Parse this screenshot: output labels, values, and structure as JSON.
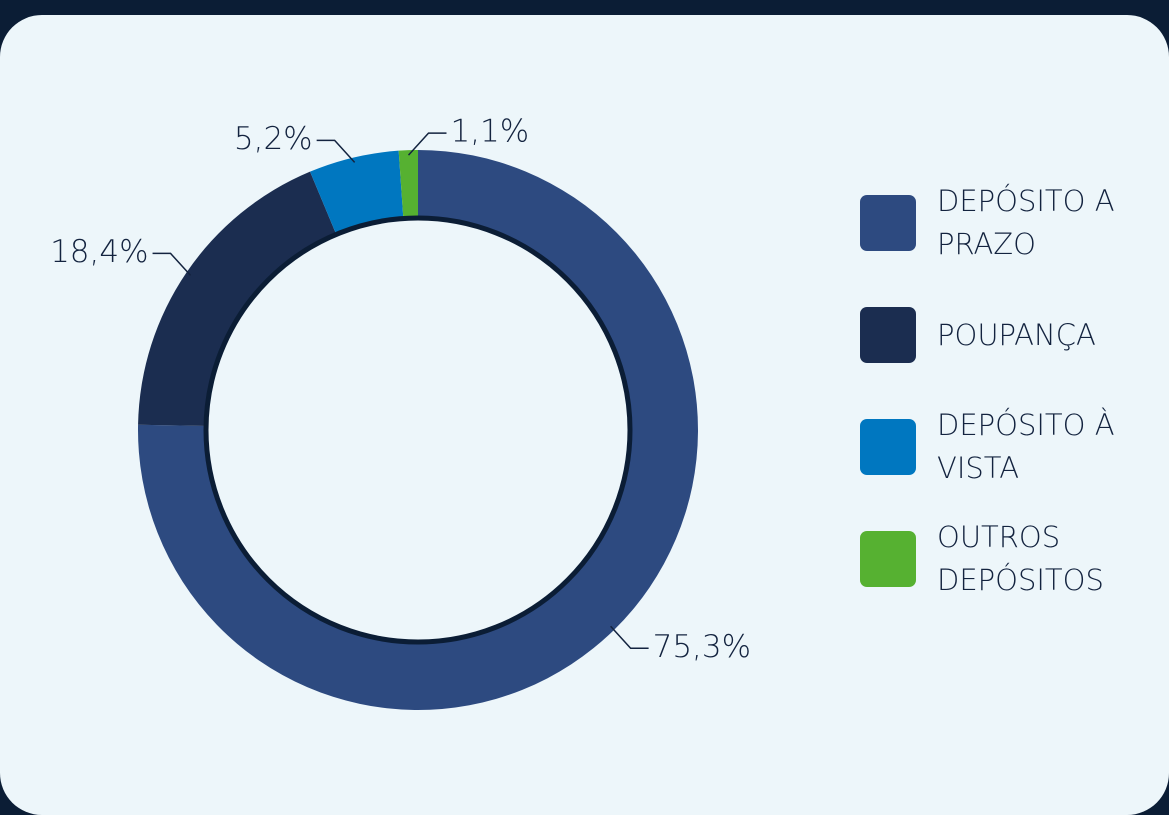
{
  "chart_data": {
    "type": "donut",
    "categories": [
      "DEPÓSITO A PRAZO",
      "POUPANÇA",
      "DEPÓSITO À VISTA",
      "OUTROS DEPÓSITOS"
    ],
    "values": [
      75.3,
      18.4,
      5.2,
      1.1
    ],
    "value_labels": [
      "75,3%",
      "18,4%",
      "5,2%",
      "1,1%"
    ],
    "colors": [
      "#2d4a80",
      "#1b2d50",
      "#0077c0",
      "#56b131"
    ],
    "legend": "right"
  }
}
